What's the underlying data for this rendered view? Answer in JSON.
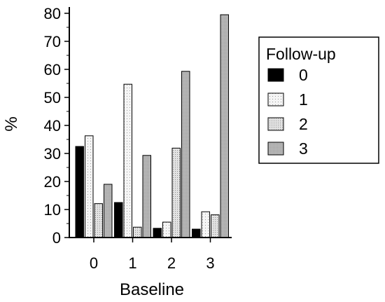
{
  "chart_data": {
    "type": "bar",
    "categories": [
      "0",
      "1",
      "2",
      "3"
    ],
    "xlabel": "Baseline",
    "ylabel": "%",
    "ylim": [
      0,
      80
    ],
    "yticks": [
      0,
      10,
      20,
      30,
      40,
      50,
      60,
      70,
      80
    ],
    "grid": false,
    "legend": {
      "title": "Follow-up",
      "placement": "right"
    },
    "series": [
      {
        "name": "0",
        "fill": "solid-black",
        "color": "#000000",
        "values": [
          32.5,
          12.5,
          3.3,
          3.0
        ]
      },
      {
        "name": "1",
        "fill": "light-dots",
        "color": "#f2f2f2",
        "values": [
          36.3,
          54.7,
          5.5,
          9.2
        ]
      },
      {
        "name": "2",
        "fill": "medium-dots",
        "color": "#d9d9d9",
        "values": [
          12.1,
          3.7,
          31.9,
          8.1
        ]
      },
      {
        "name": "3",
        "fill": "grey",
        "color": "#b0b0b0",
        "values": [
          19.0,
          29.3,
          59.3,
          79.5
        ]
      }
    ]
  }
}
